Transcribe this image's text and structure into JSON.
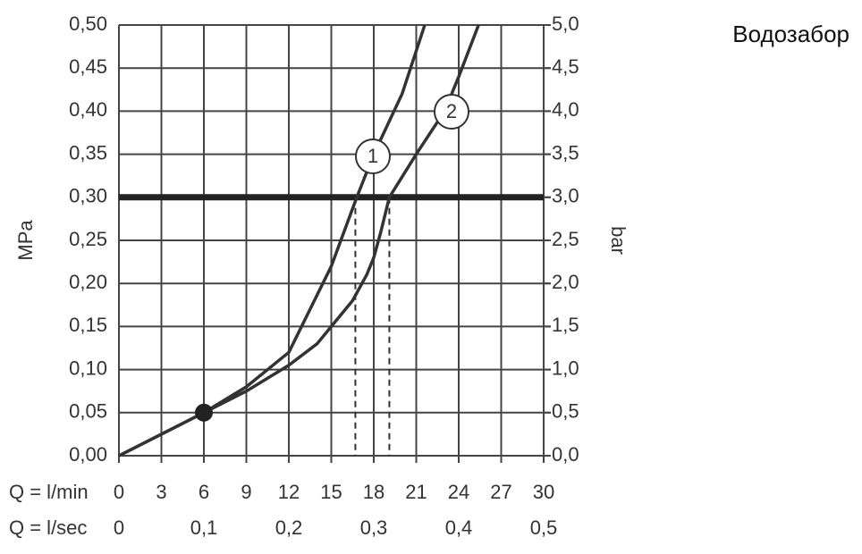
{
  "chart_data": {
    "type": "line",
    "title": "Водозабор",
    "xlabel": "Q = l/min",
    "x2label": "Q = l/sec",
    "ylabel": "MPa",
    "y2label": "bar",
    "xlim": [
      0,
      30
    ],
    "xticks": [
      0,
      3,
      6,
      9,
      12,
      15,
      18,
      21,
      24,
      27,
      30
    ],
    "x2lim": [
      0,
      0.5
    ],
    "x2ticks": [
      0,
      {
        "value": 0.1,
        "label": "0,1"
      },
      {
        "value": 0.2,
        "label": "0,2"
      },
      {
        "value": 0.3,
        "label": "0,3"
      },
      {
        "value": 0.4,
        "label": "0,4"
      },
      {
        "value": 0.5,
        "label": "0,5"
      }
    ],
    "ylim": [
      0,
      0.5
    ],
    "yticks": [
      {
        "value": 0,
        "label": "0,00"
      },
      {
        "value": 0.05,
        "label": "0,05"
      },
      {
        "value": 0.1,
        "label": "0,10"
      },
      {
        "value": 0.15,
        "label": "0,15"
      },
      {
        "value": 0.2,
        "label": "0,20"
      },
      {
        "value": 0.25,
        "label": "0,25"
      },
      {
        "value": 0.3,
        "label": "0,30"
      },
      {
        "value": 0.35,
        "label": "0,35"
      },
      {
        "value": 0.4,
        "label": "0,40"
      },
      {
        "value": 0.45,
        "label": "0,45"
      },
      {
        "value": 0.5,
        "label": "0,50"
      }
    ],
    "y2lim": [
      0,
      5
    ],
    "y2ticks": [
      {
        "value": 0,
        "label": "0,0"
      },
      {
        "value": 0.5,
        "label": "0,5"
      },
      {
        "value": 1,
        "label": "1,0"
      },
      {
        "value": 1.5,
        "label": "1,5"
      },
      {
        "value": 2,
        "label": "2,0"
      },
      {
        "value": 2.5,
        "label": "2,5"
      },
      {
        "value": 3,
        "label": "3,0"
      },
      {
        "value": 3.5,
        "label": "3,5"
      },
      {
        "value": 4,
        "label": "4,0"
      },
      {
        "value": 4.5,
        "label": "4,5"
      },
      {
        "value": 5,
        "label": "5,0"
      }
    ],
    "grid": true,
    "threshold": 0.3,
    "dashed_x": [
      16.7,
      19.1
    ],
    "point": {
      "x": 6,
      "y": 0.05
    },
    "series": [
      {
        "name": "1",
        "color": "#333333",
        "x": [
          0,
          3,
          6,
          9,
          12,
          13.5,
          15,
          16.8,
          18,
          20,
          21.6
        ],
        "values": [
          0,
          0.025,
          0.05,
          0.08,
          0.12,
          0.17,
          0.22,
          0.3,
          0.35,
          0.42,
          0.5
        ]
      },
      {
        "name": "2",
        "color": "#333333",
        "x": [
          0,
          6,
          9,
          12,
          14,
          15,
          16.5,
          17.5,
          18,
          18.5,
          19.1,
          21,
          23,
          24,
          25.4
        ],
        "values": [
          0,
          0.05,
          0.075,
          0.105,
          0.13,
          0.15,
          0.18,
          0.21,
          0.23,
          0.26,
          0.3,
          0.35,
          0.4,
          0.44,
          0.5
        ]
      }
    ]
  }
}
